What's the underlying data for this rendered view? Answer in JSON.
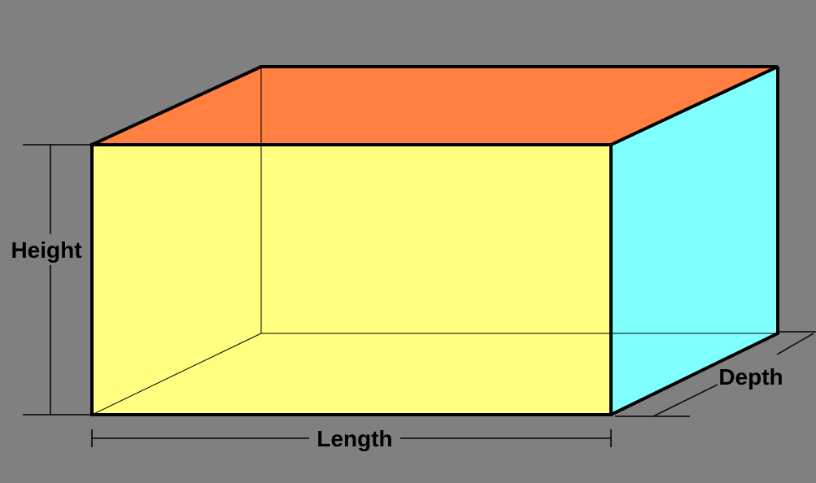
{
  "labels": {
    "height": "Height",
    "length": "Length",
    "depth": "Depth"
  },
  "colors": {
    "background": "#808080",
    "front_face": "#FFFF80",
    "top_face": "#FF8040",
    "side_face": "#80FFFF",
    "edge": "#000000"
  }
}
